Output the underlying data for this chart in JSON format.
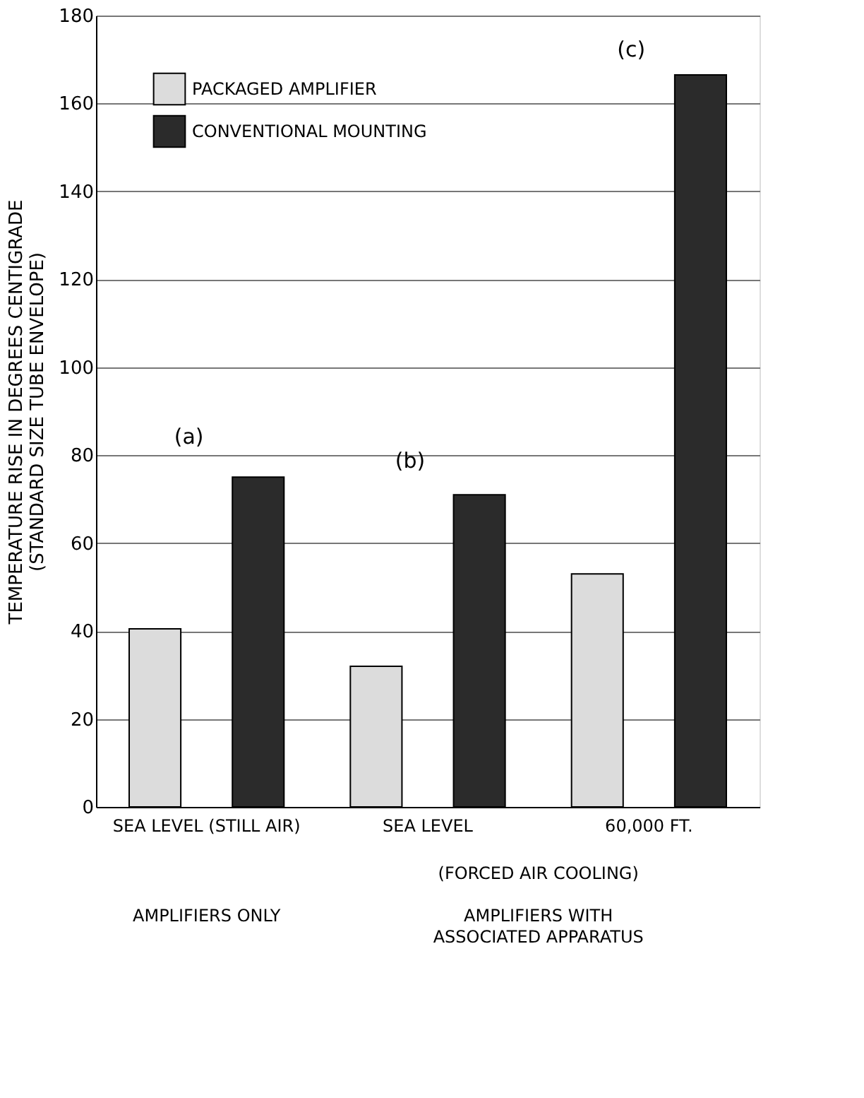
{
  "chart_data": {
    "type": "bar",
    "ylabel": "TEMPERATURE RISE IN DEGREES CENTIGRADE\n(STANDARD SIZE TUBE ENVELOPE)",
    "categories": [
      "SEA LEVEL (STILL AIR)",
      "SEA LEVEL",
      "60,000 FT."
    ],
    "series": [
      {
        "name": "PACKAGED AMPLIFIER",
        "color": "#dcdcdc",
        "values": [
          40.5,
          32,
          53
        ]
      },
      {
        "name": "CONVENTIONAL MOUNTING",
        "color": "#2b2b2b",
        "values": [
          75,
          71,
          166.5
        ]
      }
    ],
    "ylim": [
      0,
      180
    ],
    "yticks": [
      0,
      20,
      40,
      60,
      80,
      100,
      120,
      140,
      160,
      180
    ],
    "grid": "y",
    "legend": "top left",
    "annotations": [
      "(a)",
      "(b)",
      "(c)",
      "(FORCED AIR COOLING)",
      "AMPLIFIERS ONLY",
      "AMPLIFIERS WITH ASSOCIATED APPARATUS"
    ]
  }
}
